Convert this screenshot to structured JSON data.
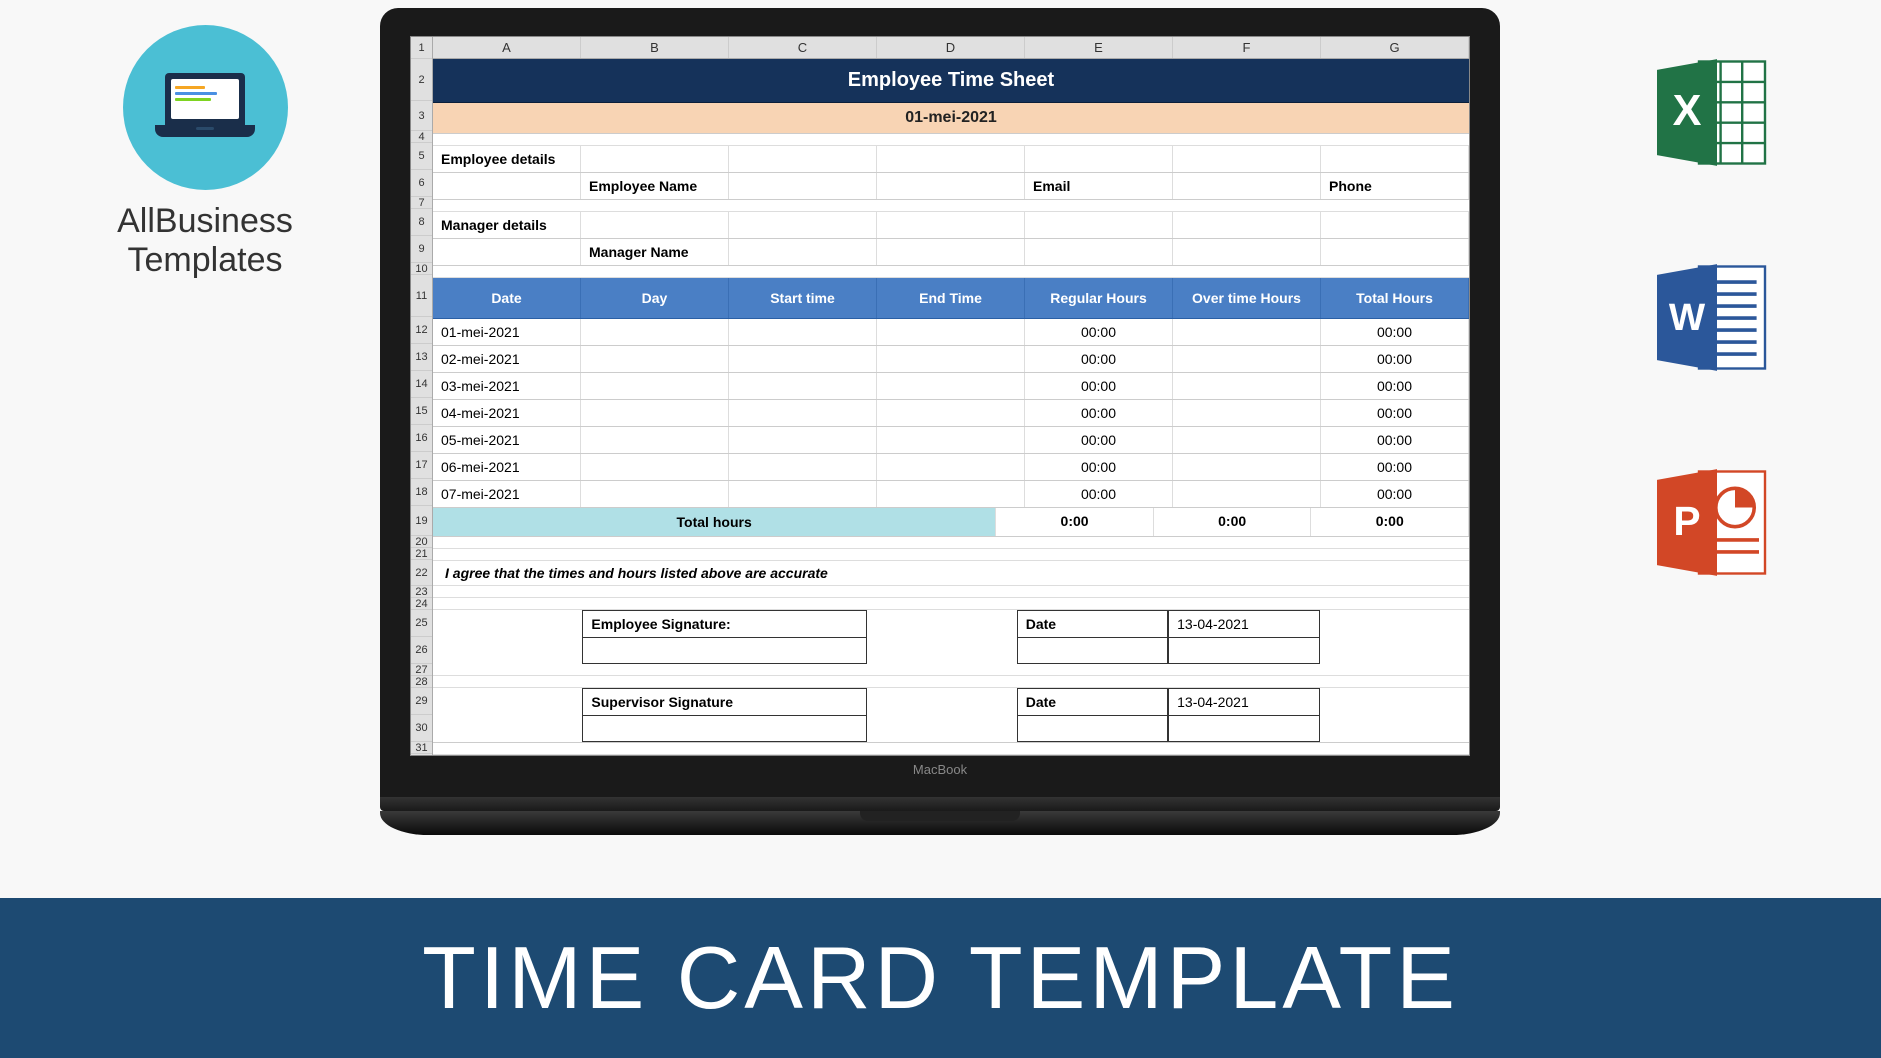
{
  "brand": {
    "line1": "AllBusiness",
    "line2": "Templates"
  },
  "banner": {
    "text": "TIME CARD TEMPLATE"
  },
  "colors": {
    "brand_circle": "#4bbfd4",
    "title_bg": "#15325a",
    "date_bg": "#f8d4b4",
    "thead_bg": "#4a7fc5",
    "totals_bg": "#b0e0e6",
    "banner_bg": "#1d4a72",
    "excel": "#217346",
    "word": "#2b579a",
    "ppt": "#d24726"
  },
  "sheet": {
    "columns": [
      "A",
      "B",
      "C",
      "D",
      "E",
      "F",
      "G"
    ],
    "row_numbers": [
      "1",
      "2",
      "3",
      "4",
      "5",
      "6",
      "7",
      "8",
      "9",
      "10",
      "11",
      "12",
      "13",
      "14",
      "15",
      "16",
      "17",
      "18",
      "19",
      "20",
      "21",
      "22",
      "23",
      "24",
      "25",
      "26",
      "27",
      "28",
      "29",
      "30",
      "31"
    ],
    "title": "Employee Time Sheet",
    "date": "01-mei-2021",
    "sections": {
      "employee_details_label": "Employee details",
      "employee_name_label": "Employee Name",
      "email_label": "Email",
      "phone_label": "Phone",
      "manager_details_label": "Manager details",
      "manager_name_label": "Manager Name"
    },
    "table_headers": [
      "Date",
      "Day",
      "Start time",
      "End Time",
      "Regular Hours",
      "Over time Hours",
      "Total Hours"
    ],
    "rows": [
      {
        "date": "01-mei-2021",
        "day": "",
        "start": "",
        "end": "",
        "reg": "00:00",
        "ot": "",
        "total": "00:00"
      },
      {
        "date": "02-mei-2021",
        "day": "",
        "start": "",
        "end": "",
        "reg": "00:00",
        "ot": "",
        "total": "00:00"
      },
      {
        "date": "03-mei-2021",
        "day": "",
        "start": "",
        "end": "",
        "reg": "00:00",
        "ot": "",
        "total": "00:00"
      },
      {
        "date": "04-mei-2021",
        "day": "",
        "start": "",
        "end": "",
        "reg": "00:00",
        "ot": "",
        "total": "00:00"
      },
      {
        "date": "05-mei-2021",
        "day": "",
        "start": "",
        "end": "",
        "reg": "00:00",
        "ot": "",
        "total": "00:00"
      },
      {
        "date": "06-mei-2021",
        "day": "",
        "start": "",
        "end": "",
        "reg": "00:00",
        "ot": "",
        "total": "00:00"
      },
      {
        "date": "07-mei-2021",
        "day": "",
        "start": "",
        "end": "",
        "reg": "00:00",
        "ot": "",
        "total": "00:00"
      }
    ],
    "totals": {
      "label": "Total hours",
      "reg": "0:00",
      "ot": "0:00",
      "total": "0:00"
    },
    "agreement": "I agree that the times and hours listed above are accurate",
    "signatures": {
      "employee_label": "Employee Signature:",
      "supervisor_label": "Supervisor Signature",
      "date_label": "Date",
      "employee_date": "13-04-2021",
      "supervisor_date": "13-04-2021"
    }
  }
}
